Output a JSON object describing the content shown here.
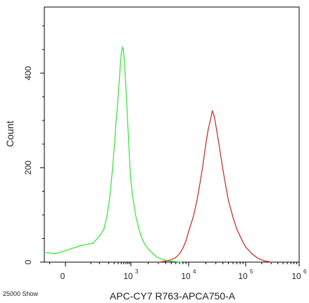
{
  "chart_data": {
    "type": "line",
    "title": "",
    "xlabel": "APC-CY7 R763-APCA750-A",
    "ylabel": "Count",
    "footer_note": "25000 Show",
    "grid": false,
    "x_scale": "biexponential",
    "xlim": [
      -100,
      1000000
    ],
    "ylim": [
      0,
      540
    ],
    "x_ticks": [
      {
        "value": 0,
        "base": "0",
        "exp": ""
      },
      {
        "value": 1000,
        "base": "10",
        "exp": "3"
      },
      {
        "value": 10000,
        "base": "10",
        "exp": "4"
      },
      {
        "value": 100000,
        "base": "10",
        "exp": "5"
      },
      {
        "value": 1000000,
        "base": "10",
        "exp": "6"
      }
    ],
    "y_ticks": [
      {
        "value": 0,
        "label": "0"
      },
      {
        "value": 200,
        "label": "200"
      },
      {
        "value": 400,
        "label": "400"
      }
    ],
    "series": [
      {
        "color": "#2ee82e",
        "x": [
          -80,
          -20,
          20,
          60,
          100,
          140,
          180,
          220,
          260,
          300,
          340,
          380,
          420,
          460,
          500,
          540,
          580,
          620,
          660,
          700,
          750,
          800,
          860,
          920,
          1000,
          1100,
          1200,
          1350,
          1500,
          1700,
          2000,
          2400,
          2900,
          3500,
          4200,
          5000,
          6000,
          7500
        ],
        "y": [
          20,
          18,
          35,
          40,
          55,
          70,
          100,
          140,
          190,
          240,
          290,
          330,
          370,
          410,
          440,
          455,
          450,
          430,
          400,
          370,
          330,
          290,
          250,
          210,
          170,
          130,
          100,
          75,
          55,
          40,
          28,
          18,
          10,
          6,
          3,
          2,
          1,
          0
        ]
      },
      {
        "color": "#cc2222",
        "x": [
          3000,
          4000,
          5000,
          6000,
          7000,
          8000,
          9000,
          10000,
          12000,
          14000,
          16000,
          18000,
          20000,
          22000,
          24000,
          26000,
          28000,
          30000,
          33000,
          36000,
          40000,
          45000,
          50000,
          60000,
          70000,
          85000,
          100000,
          130000,
          170000,
          220000,
          300000
        ],
        "y": [
          0,
          2,
          5,
          10,
          18,
          30,
          45,
          65,
          95,
          130,
          170,
          210,
          250,
          280,
          300,
          320,
          310,
          290,
          260,
          230,
          195,
          160,
          130,
          95,
          70,
          48,
          32,
          18,
          8,
          3,
          0
        ]
      }
    ]
  }
}
